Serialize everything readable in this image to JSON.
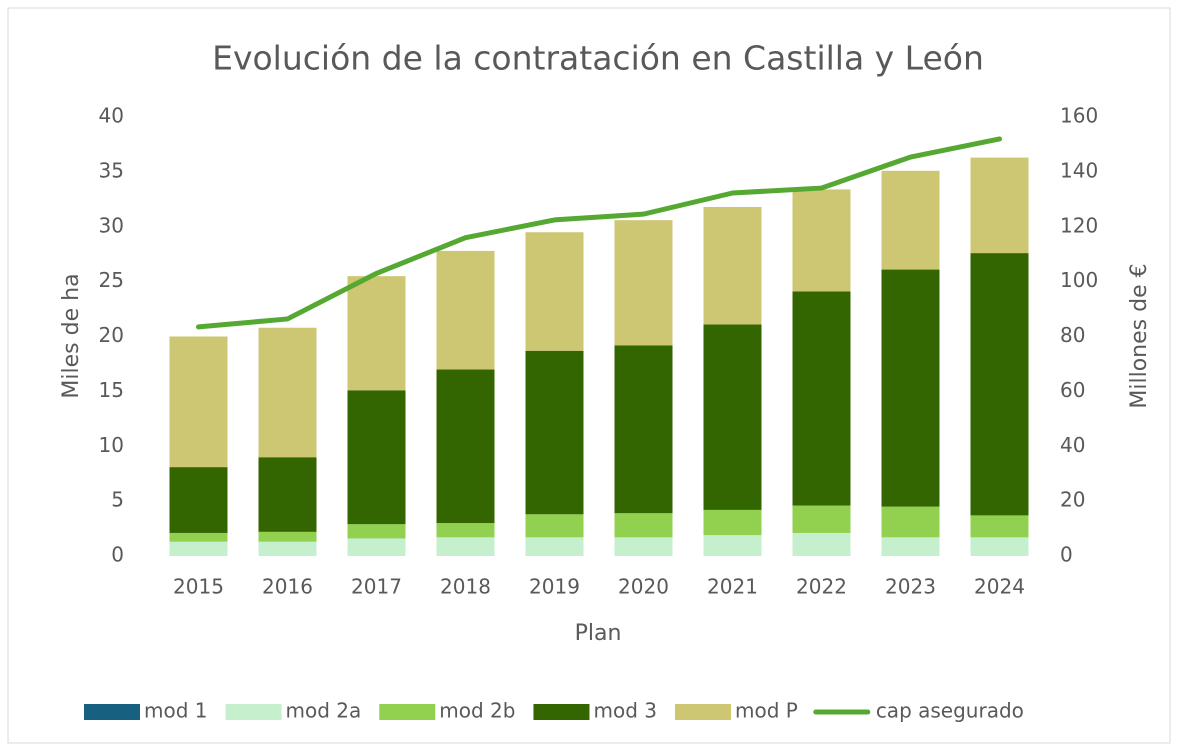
{
  "chart_data": {
    "type": "bar",
    "stacked": true,
    "title": "Evolución de la contratación en Castilla y León",
    "x_label": "Plan",
    "y_label": "Miles de ha",
    "y2_label": "Millones de €",
    "categories": [
      "2015",
      "2016",
      "2017",
      "2018",
      "2019",
      "2020",
      "2021",
      "2022",
      "2023",
      "2024"
    ],
    "series": [
      {
        "name": "mod 1",
        "color": "#17607f",
        "values": [
          0,
          0,
          0,
          0,
          0,
          0,
          0,
          0,
          0,
          0
        ]
      },
      {
        "name": "mod 2a",
        "color": "#c6efce",
        "values": [
          1.3,
          1.3,
          1.6,
          1.7,
          1.7,
          1.7,
          1.9,
          2.1,
          1.7,
          1.7
        ]
      },
      {
        "name": "mod 2b",
        "color": "#92d050",
        "values": [
          0.8,
          0.9,
          1.3,
          1.3,
          2.1,
          2.2,
          2.3,
          2.5,
          2.8,
          2.0
        ]
      },
      {
        "name": "mod 3",
        "color": "#336600",
        "values": [
          6.0,
          6.8,
          12.2,
          14.0,
          14.9,
          15.3,
          16.9,
          19.5,
          21.6,
          23.9
        ]
      },
      {
        "name": "mod P",
        "color": "#cdc673",
        "values": [
          11.9,
          11.8,
          10.4,
          10.8,
          10.8,
          11.4,
          10.7,
          9.3,
          9.0,
          8.7
        ]
      },
      {
        "name": "cap asegurado",
        "color": "#55a832",
        "type": "line",
        "axis": "y2",
        "values": [
          83.5,
          86.4,
          103,
          116,
          122.5,
          124.6,
          132.3,
          134.1,
          145.4,
          152
        ]
      }
    ],
    "ylim": [
      0,
      40
    ],
    "yticks": [
      0,
      5,
      10,
      15,
      20,
      25,
      30,
      35,
      40
    ],
    "y2lim": [
      0,
      160
    ],
    "y2ticks": [
      0,
      20,
      40,
      60,
      80,
      100,
      120,
      140,
      160
    ],
    "legend": "bottom"
  }
}
